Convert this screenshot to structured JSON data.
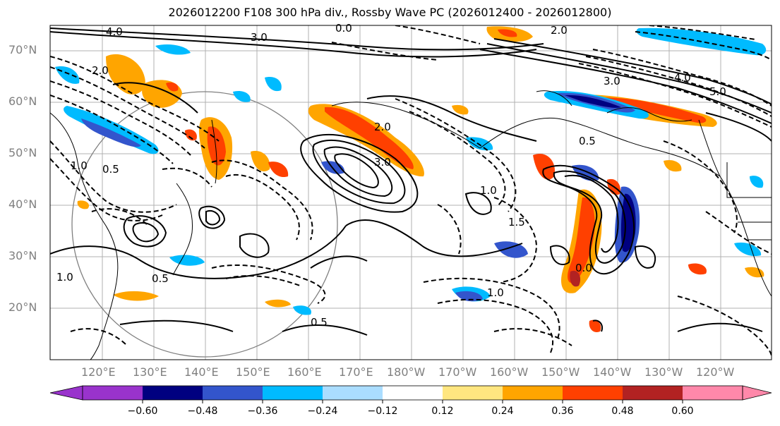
{
  "title": "2026012200 F108 300 hPa div., Rossby Wave PC (2026012400 - 2026012800)",
  "lat_labels": [
    "70°N",
    "60°N",
    "50°N",
    "40°N",
    "30°N",
    "20°N"
  ],
  "lon_labels": [
    "120°E",
    "130°E",
    "140°E",
    "150°E",
    "160°E",
    "170°E",
    "180°W",
    "170°W",
    "160°W",
    "150°W",
    "140°W",
    "130°W",
    "120°W"
  ],
  "colorbar": {
    "ticks": [
      "−0.60",
      "−0.48",
      "−0.36",
      "−0.24",
      "−0.12",
      "0.12",
      "0.24",
      "0.36",
      "0.48",
      "0.60"
    ],
    "colors": [
      "#9933cc",
      "#000080",
      "#3355cc",
      "#00bbff",
      "#aaddff",
      "#ffffff",
      "#ffe680",
      "#ffa500",
      "#ff4000",
      "#b22222",
      "#ff88aa"
    ]
  },
  "contour_labels": [
    "4.0",
    "3.0",
    "0.0",
    "2.0",
    "1.0",
    "0.5",
    "1.5",
    "5.0",
    "4.0",
    "3.0",
    "2.0",
    "1.0",
    "0.5",
    "2.0",
    "3.0",
    "0.5",
    "1.0",
    "0.0",
    "1.0",
    "0.5"
  ]
}
